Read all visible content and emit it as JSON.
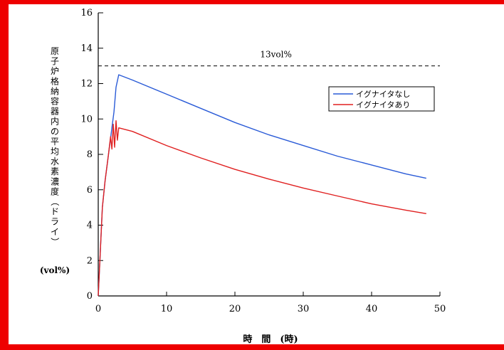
{
  "chart_data": {
    "type": "line",
    "ylabel": "原子炉格納容器内の平均水素濃度（ドライ）",
    "ylabel_unit": "(vol%)",
    "xlabel": "時　間　(時)",
    "xlim": [
      0,
      50
    ],
    "ylim": [
      0,
      16
    ],
    "xticks": [
      0,
      10,
      20,
      30,
      40,
      50
    ],
    "yticks": [
      0,
      2,
      4,
      6,
      8,
      10,
      12,
      14,
      16
    ],
    "grid": false,
    "legend_position": "top-right",
    "reference_line": {
      "y": 13,
      "label": "13vol%",
      "style": "dashed"
    },
    "series": [
      {
        "name": "イグナイタなし",
        "color": "#2a5bd7",
        "points": [
          [
            0,
            0
          ],
          [
            0.3,
            2.5
          ],
          [
            0.6,
            5
          ],
          [
            1,
            6.5
          ],
          [
            1.5,
            8
          ],
          [
            2,
            9.5
          ],
          [
            2.3,
            10.4
          ],
          [
            2.6,
            11.8
          ],
          [
            3,
            12.5
          ],
          [
            5,
            12.2
          ],
          [
            10,
            11.4
          ],
          [
            15,
            10.6
          ],
          [
            20,
            9.8
          ],
          [
            25,
            9.1
          ],
          [
            30,
            8.5
          ],
          [
            35,
            7.9
          ],
          [
            40,
            7.4
          ],
          [
            45,
            6.9
          ],
          [
            48,
            6.65
          ]
        ]
      },
      {
        "name": "イグナイタあり",
        "color": "#e02020",
        "points": [
          [
            0,
            0
          ],
          [
            0.3,
            2.5
          ],
          [
            0.6,
            5
          ],
          [
            1,
            6.5
          ],
          [
            1.5,
            8
          ],
          [
            1.8,
            9
          ],
          [
            2,
            8.3
          ],
          [
            2.2,
            9.7
          ],
          [
            2.4,
            8.4
          ],
          [
            2.6,
            9.9
          ],
          [
            2.8,
            8.8
          ],
          [
            3,
            9.5
          ],
          [
            5,
            9.3
          ],
          [
            10,
            8.5
          ],
          [
            15,
            7.8
          ],
          [
            20,
            7.15
          ],
          [
            25,
            6.6
          ],
          [
            30,
            6.1
          ],
          [
            35,
            5.65
          ],
          [
            40,
            5.2
          ],
          [
            45,
            4.85
          ],
          [
            48,
            4.65
          ]
        ]
      }
    ]
  }
}
